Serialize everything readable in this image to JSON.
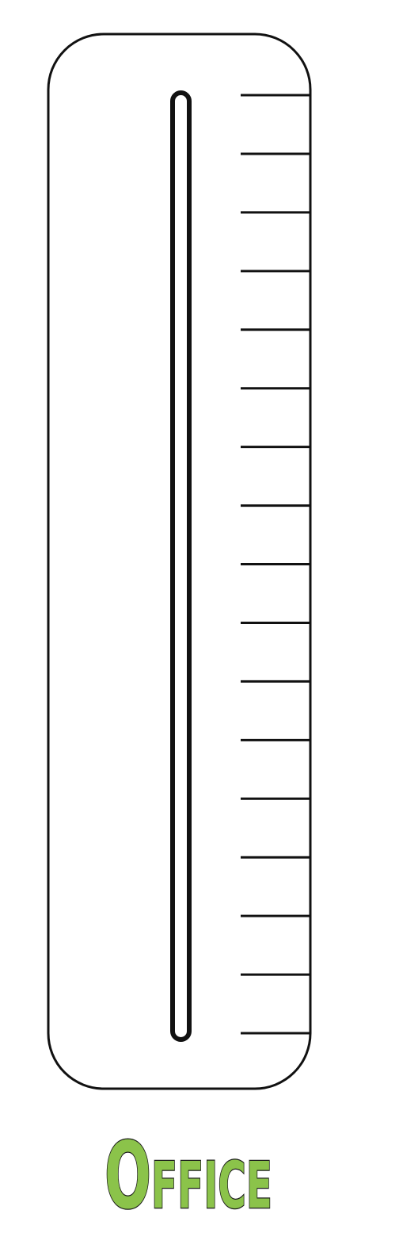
{
  "label": {
    "text": "Office",
    "color": "#8bc34a",
    "outline_color": "#1a1a1a"
  },
  "thermometer": {
    "tick_count": 17,
    "stroke_color": "#111111",
    "fill_color": "#ffffff"
  }
}
